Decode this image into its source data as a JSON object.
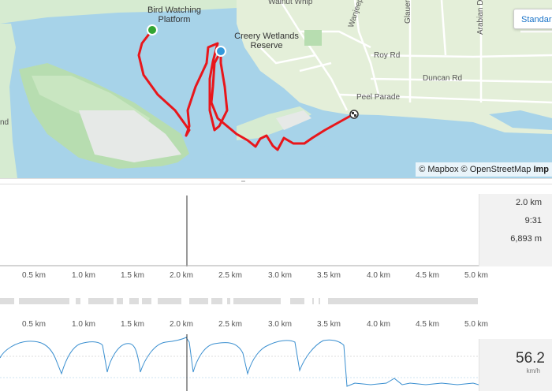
{
  "map": {
    "labels": {
      "walnut_whip": "Walnut Whip",
      "bird_watching_line1": "Bird Watching",
      "bird_watching_line2": "Platform",
      "creery_line1": "Creery Wetlands",
      "creery_line2": "Reserve",
      "wanjeep": "Wanjeep St",
      "glauert": "Glauert Rd",
      "arabian": "Arabian Dr",
      "roy": "Roy Rd",
      "duncan": "Duncan Rd",
      "peel": "Peel Parade",
      "land": "nd"
    },
    "style_button": "Standard",
    "attribution_mapbox": "© Mapbox",
    "attribution_osm": "© OpenStreetMap",
    "attribution_imp": "Imp",
    "colors": {
      "water": "#a7d3e9",
      "land": "#d9edd4",
      "sand": "#e6e9e7",
      "route": "#e8161b",
      "start": "#33a532",
      "end_marker": "#3498db"
    }
  },
  "hover_stats": {
    "distance": "2.0 km",
    "time": "9:31",
    "metric3": "6,893 m"
  },
  "axis_ticks": [
    "0.5 km",
    "1.0 km",
    "1.5 km",
    "2.0 km",
    "2.5 km",
    "3.0 km",
    "3.5 km",
    "4.0 km",
    "4.5 km",
    "5.0 km"
  ],
  "speed": {
    "value": "56.2",
    "unit": "km/h"
  }
}
